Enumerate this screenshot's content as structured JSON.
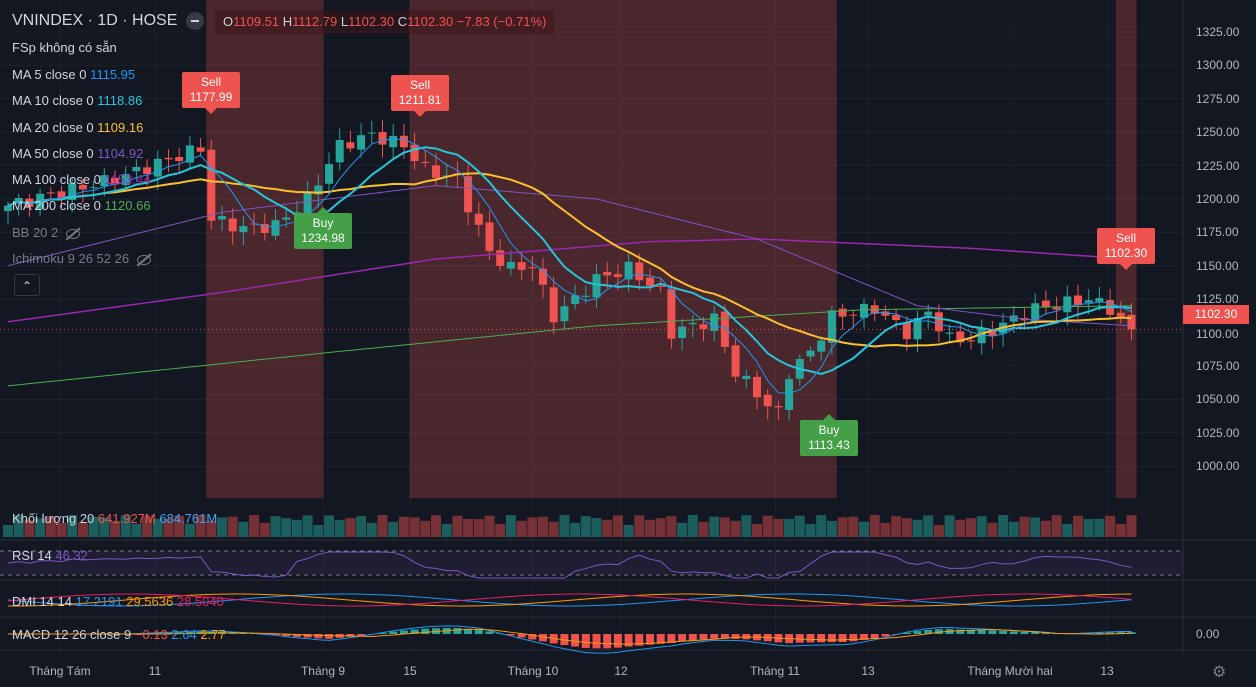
{
  "header": {
    "symbol": "VNINDEX",
    "interval": "1D",
    "exchange": "HOSE",
    "title": "VNINDEX · 1D · HOSE",
    "o_label": "O",
    "o": "1109.51",
    "h_label": "H",
    "h": "1112.79",
    "l_label": "L",
    "l": "1102.30",
    "c_label": "C",
    "c": "1102.30",
    "change": "−7.83 (−0.71%)"
  },
  "indicators": {
    "fsp": "FSp  không có sẵn",
    "ma5": {
      "label": "MA 5 close 0",
      "value": "1115.95",
      "color": "#2196f3"
    },
    "ma10": {
      "label": "MA 10 close 0",
      "value": "1118.86",
      "color": "#26c6da"
    },
    "ma20": {
      "label": "MA 20 close 0",
      "value": "1109.16",
      "color": "#fbc02d"
    },
    "ma50": {
      "label": "MA 50 close 0",
      "value": "1104.92",
      "color": "#7e57c2"
    },
    "ma100": {
      "label": "MA 100 close 0",
      "value": "1153.44",
      "color": "#9c27b0"
    },
    "ma200": {
      "label": "MA 200 close 0",
      "value": "1120.66",
      "color": "#4caf50"
    },
    "bb": "BB 20 2",
    "ichimoku": "Ichimoku 9 26 52 26",
    "volume": {
      "label": "Khối lượng 20",
      "v1": "641.927M",
      "v2": "684.761M"
    },
    "rsi": {
      "label": "RSI 14",
      "value": "46.32"
    },
    "dmi": {
      "label": "DMI 14 14",
      "v1": "17.2191",
      "v2": "29.5636",
      "v3": "28.5040"
    },
    "macd": {
      "label": "MACD 12 26 close 9",
      "v1": "−0.13",
      "v2": "2.64",
      "v3": "2.77"
    },
    "collapse_icon": "chevron-up-icon"
  },
  "signals": [
    {
      "type": "Sell",
      "price": "1177.99"
    },
    {
      "type": "Sell",
      "price": "1211.81"
    },
    {
      "type": "Buy",
      "price": "1234.98"
    },
    {
      "type": "Buy",
      "price": "1113.43"
    },
    {
      "type": "Sell",
      "price": "1102.30"
    }
  ],
  "price_axis": [
    "1325.00",
    "1300.00",
    "1275.00",
    "1250.00",
    "1225.00",
    "1200.00",
    "1175.00",
    "1150.00",
    "1125.00",
    "1100.00",
    "1075.00",
    "1050.00",
    "1025.00",
    "1000.00"
  ],
  "last_price": "1102.30",
  "macd_axis": "0.00",
  "time_axis": [
    "Tháng Tám",
    "11",
    "Tháng 9",
    "15",
    "Tháng 10",
    "12",
    "Tháng 11",
    "13",
    "Tháng Mười hai",
    "13"
  ],
  "chart_data": {
    "type": "candlestick",
    "close_keypoints": [
      [
        0,
        1195
      ],
      [
        10,
        1215
      ],
      [
        18,
        1238
      ],
      [
        19,
        1185
      ],
      [
        22,
        1178
      ],
      [
        25,
        1180
      ],
      [
        28,
        1200
      ],
      [
        31,
        1240
      ],
      [
        34,
        1248
      ],
      [
        37,
        1240
      ],
      [
        39,
        1222
      ],
      [
        42,
        1215
      ],
      [
        43,
        1195
      ],
      [
        45,
        1160
      ],
      [
        47,
        1148
      ],
      [
        49,
        1150
      ],
      [
        51,
        1112
      ],
      [
        53,
        1125
      ],
      [
        55,
        1140
      ],
      [
        58,
        1148
      ],
      [
        61,
        1130
      ],
      [
        62,
        1100
      ],
      [
        64,
        1105
      ],
      [
        66,
        1110
      ],
      [
        68,
        1070
      ],
      [
        70,
        1055
      ],
      [
        71,
        1045
      ],
      [
        72,
        1040
      ],
      [
        73,
        1070
      ],
      [
        75,
        1085
      ],
      [
        77,
        1112
      ],
      [
        79,
        1115
      ],
      [
        81,
        1118
      ],
      [
        84,
        1100
      ],
      [
        86,
        1115
      ],
      [
        88,
        1095
      ],
      [
        90,
        1095
      ],
      [
        92,
        1102
      ],
      [
        94,
        1110
      ],
      [
        96,
        1118
      ],
      [
        99,
        1122
      ],
      [
        101,
        1125
      ],
      [
        103,
        1118
      ],
      [
        104,
        1110
      ],
      [
        105,
        1102.3
      ]
    ],
    "ma100_keypoints": [
      [
        0,
        1108
      ],
      [
        20,
        1130
      ],
      [
        40,
        1155
      ],
      [
        60,
        1168
      ],
      [
        70,
        1170
      ],
      [
        90,
        1163
      ],
      [
        105,
        1155
      ]
    ],
    "ma200_keypoints": [
      [
        0,
        1060
      ],
      [
        30,
        1085
      ],
      [
        55,
        1105
      ],
      [
        80,
        1117
      ],
      [
        105,
        1120
      ]
    ],
    "ma50_keypoints": [
      [
        0,
        1150
      ],
      [
        20,
        1190
      ],
      [
        40,
        1210
      ],
      [
        55,
        1200
      ],
      [
        70,
        1170
      ],
      [
        85,
        1120
      ],
      [
        95,
        1110
      ],
      [
        105,
        1105
      ]
    ],
    "sell_zones": [
      [
        19,
        29
      ],
      [
        38,
        77
      ],
      [
        104,
        105
      ]
    ],
    "ylim": [
      975,
      1340
    ]
  }
}
